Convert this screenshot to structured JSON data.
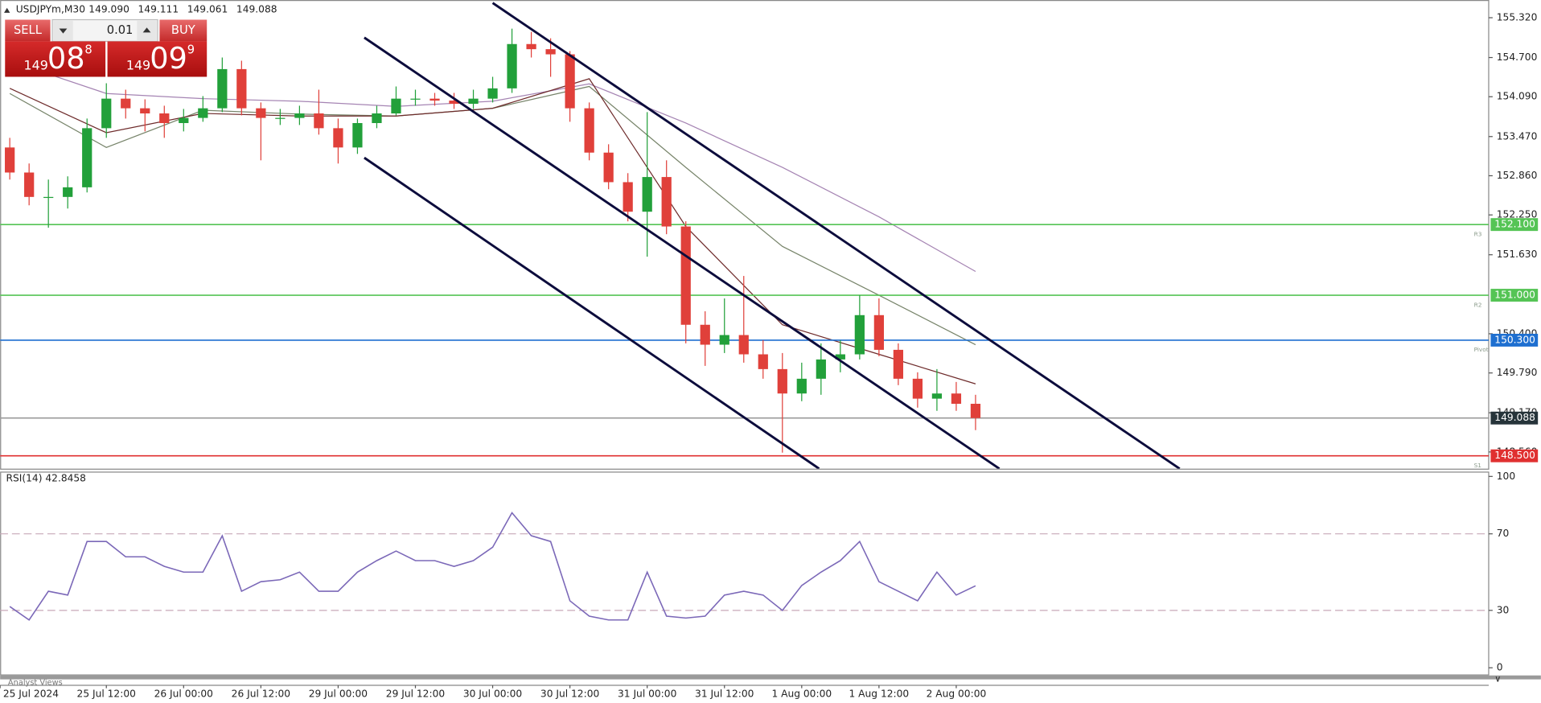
{
  "header": {
    "symbol": "USDJPYm,M30",
    "ohlc": [
      "149.090",
      "149.111",
      "149.061",
      "149.088"
    ]
  },
  "trade_panel": {
    "sell": "SELL",
    "buy": "BUY",
    "volume": "0.01",
    "sell_price": {
      "big": "149",
      "main": "08",
      "sup": "8"
    },
    "buy_price": {
      "big": "149",
      "main": "09",
      "sup": "9"
    }
  },
  "footer": "Analyst Views",
  "chart_data": [
    {
      "type": "candlestick",
      "up_color": "#22a03a",
      "down_color": "#e0403a",
      "x": [
        -3,
        0,
        3,
        6,
        9,
        12,
        15,
        18,
        21,
        24,
        27,
        30,
        33,
        36,
        39,
        42,
        45,
        48,
        51,
        54,
        57,
        60,
        63,
        66,
        69,
        72,
        75,
        78,
        81,
        84,
        87,
        90,
        93,
        96,
        99,
        102,
        105,
        108,
        111,
        114,
        117,
        120,
        123,
        126,
        129,
        132,
        135,
        138,
        141,
        144,
        147
      ],
      "candles": [
        [
          153.3,
          153.45,
          152.8,
          152.91
        ],
        [
          152.91,
          153.05,
          152.4,
          152.53
        ],
        [
          152.53,
          152.8,
          152.05,
          152.53
        ],
        [
          152.53,
          152.85,
          152.35,
          152.68
        ],
        [
          152.68,
          153.75,
          152.6,
          153.6
        ],
        [
          153.6,
          154.3,
          153.45,
          154.06
        ],
        [
          154.06,
          154.2,
          153.75,
          153.91
        ],
        [
          153.91,
          154.05,
          153.55,
          153.83
        ],
        [
          153.83,
          153.95,
          153.45,
          153.68
        ],
        [
          153.68,
          153.9,
          153.55,
          153.76
        ],
        [
          153.76,
          154.1,
          153.7,
          153.91
        ],
        [
          153.91,
          154.7,
          153.85,
          154.52
        ],
        [
          154.52,
          154.65,
          153.8,
          153.91
        ],
        [
          153.91,
          154.0,
          153.1,
          153.76
        ],
        [
          153.76,
          153.9,
          153.65,
          153.76
        ],
        [
          153.76,
          153.95,
          153.65,
          153.83
        ],
        [
          153.83,
          154.2,
          153.5,
          153.6
        ],
        [
          153.6,
          153.75,
          153.05,
          153.3
        ],
        [
          153.3,
          153.75,
          153.2,
          153.68
        ],
        [
          153.68,
          153.95,
          153.6,
          153.83
        ],
        [
          153.83,
          154.25,
          153.8,
          154.06
        ],
        [
          154.06,
          154.2,
          153.95,
          154.06
        ],
        [
          154.06,
          154.15,
          153.95,
          154.03
        ],
        [
          154.03,
          154.15,
          153.9,
          153.98
        ],
        [
          153.98,
          154.2,
          153.9,
          154.06
        ],
        [
          154.06,
          154.4,
          154.0,
          154.22
        ],
        [
          154.22,
          155.15,
          154.15,
          154.91
        ],
        [
          154.91,
          155.1,
          154.7,
          154.83
        ],
        [
          154.83,
          155.0,
          154.4,
          154.75
        ],
        [
          154.75,
          154.8,
          153.7,
          153.91
        ],
        [
          153.91,
          154.0,
          153.1,
          153.22
        ],
        [
          153.22,
          153.35,
          152.65,
          152.76
        ],
        [
          152.76,
          152.9,
          152.15,
          152.3
        ],
        [
          152.3,
          153.85,
          151.6,
          152.84
        ],
        [
          152.84,
          153.1,
          151.95,
          152.07
        ],
        [
          152.07,
          152.15,
          150.25,
          150.54
        ],
        [
          150.54,
          150.75,
          149.9,
          150.23
        ],
        [
          150.23,
          150.95,
          150.1,
          150.38
        ],
        [
          150.38,
          151.3,
          149.95,
          150.08
        ],
        [
          150.08,
          150.3,
          149.7,
          149.85
        ],
        [
          149.85,
          150.1,
          148.55,
          149.47
        ],
        [
          149.47,
          149.95,
          149.35,
          149.7
        ],
        [
          149.7,
          150.25,
          149.45,
          150.0
        ],
        [
          150.0,
          150.3,
          149.8,
          150.08
        ],
        [
          150.08,
          151.0,
          150.0,
          150.69
        ],
        [
          150.69,
          150.95,
          150.05,
          150.15
        ],
        [
          150.15,
          150.25,
          149.6,
          149.7
        ],
        [
          149.7,
          149.8,
          149.25,
          149.39
        ],
        [
          149.39,
          149.85,
          149.2,
          149.47
        ],
        [
          149.47,
          149.65,
          149.2,
          149.31
        ],
        [
          149.31,
          149.45,
          148.9,
          149.088
        ]
      ],
      "ma_x": [
        -3,
        12,
        27,
        42,
        57,
        72,
        87,
        102,
        117,
        132,
        147
      ],
      "ma": [
        {
          "color": "#a584b3",
          "values": [
            154.645,
            154.14,
            154.06,
            154.02,
            153.94,
            154.02,
            154.29,
            153.68,
            152.99,
            152.22,
            151.37
          ]
        },
        {
          "color": "#77846a",
          "values": [
            154.14,
            153.3,
            153.88,
            153.82,
            153.79,
            153.91,
            154.25,
            152.99,
            151.76,
            151.0,
            150.23
          ]
        },
        {
          "color": "#6e2b2b",
          "values": [
            154.22,
            153.53,
            153.83,
            153.79,
            153.79,
            153.91,
            154.37,
            152.07,
            150.54,
            150.08,
            149.62
          ]
        }
      ],
      "trendlines": [
        {
          "x": [
            72,
            178.7
          ],
          "y": [
            155.55,
            148.3
          ]
        },
        {
          "x": [
            52.06,
            150.7
          ],
          "y": [
            155.01,
            148.3
          ]
        },
        {
          "x": [
            52.06,
            122.7
          ],
          "y": [
            153.14,
            148.3
          ]
        }
      ],
      "trendline_color": "#0c0c3c",
      "levels": [
        {
          "value": 152.1,
          "label": "152.100",
          "name": "R3",
          "color": "#55c455"
        },
        {
          "value": 151.0,
          "label": "151.000",
          "name": "R2",
          "color": "#55c455"
        },
        {
          "value": 150.3,
          "label": "150.300",
          "name": "Pivot",
          "color": "#1e6fd0"
        },
        {
          "value": 149.088,
          "label": "149.088",
          "color": "#9a9a9a",
          "label_bg": "#26343a"
        },
        {
          "value": 148.5,
          "label": "148.500",
          "name": "S1",
          "color": "#e03030"
        }
      ],
      "xlim": [
        -4.5,
        226.7
      ],
      "xticks": [
        {
          "value": -4.5,
          "label": "25 Jul 2024"
        },
        {
          "value": 12,
          "label": "25 Jul 12:00"
        },
        {
          "value": 24,
          "label": "26 Jul 00:00"
        },
        {
          "value": 36,
          "label": "26 Jul 12:00"
        },
        {
          "value": 48,
          "label": "29 Jul 00:00"
        },
        {
          "value": 60,
          "label": "29 Jul 12:00"
        },
        {
          "value": 72,
          "label": "30 Jul 00:00"
        },
        {
          "value": 84,
          "label": "30 Jul 12:00"
        },
        {
          "value": 96,
          "label": "31 Jul 00:00"
        },
        {
          "value": 108,
          "label": "31 Jul 12:00"
        },
        {
          "value": 120,
          "label": "1 Aug 00:00"
        },
        {
          "value": 132,
          "label": "1 Aug 12:00"
        },
        {
          "value": 144,
          "label": "2 Aug 00:00"
        }
      ],
      "ylim": [
        148.3,
        155.565
      ],
      "yticks": [
        {
          "value": 155.32,
          "label": "155.320"
        },
        {
          "value": 154.7,
          "label": "154.700"
        },
        {
          "value": 154.09,
          "label": "154.090"
        },
        {
          "value": 153.47,
          "label": "153.470"
        },
        {
          "value": 152.86,
          "label": "152.860"
        },
        {
          "value": 152.25,
          "label": "152.250"
        },
        {
          "value": 151.63,
          "label": "151.630"
        },
        {
          "value": 150.4,
          "label": "150.400"
        },
        {
          "value": 149.79,
          "label": "149.790"
        },
        {
          "value": 149.17,
          "label": "149.170"
        },
        {
          "value": 148.56,
          "label": "148.560"
        }
      ]
    },
    {
      "type": "line",
      "title": "RSI(14) 42.8458",
      "color": "#7b68b8",
      "x": [
        -3,
        0,
        3,
        6,
        9,
        12,
        15,
        18,
        21,
        24,
        27,
        30,
        33,
        36,
        39,
        42,
        45,
        48,
        51,
        54,
        57,
        60,
        63,
        66,
        69,
        72,
        75,
        78,
        81,
        84,
        87,
        90,
        93,
        96,
        99,
        102,
        105,
        108,
        111,
        114,
        117,
        120,
        123,
        126,
        129,
        132,
        135,
        138,
        141,
        144,
        147
      ],
      "values": [
        32,
        25,
        40,
        38,
        66,
        66,
        58,
        58,
        53,
        50,
        50,
        69,
        40,
        45,
        46,
        50,
        40,
        40,
        50,
        56,
        61,
        56,
        56,
        53,
        56,
        63,
        81,
        69,
        66,
        35,
        27,
        25,
        25,
        50,
        27,
        26,
        27,
        38,
        40,
        38,
        30,
        43,
        50,
        56,
        66,
        45,
        40,
        35,
        50,
        38,
        42.8458
      ],
      "levels": [
        {
          "value": 70,
          "color": "#c8a8b8"
        },
        {
          "value": 30,
          "color": "#c8a8b8"
        }
      ],
      "xlim": [
        -4.5,
        226.7
      ],
      "ylim": [
        -4,
        102
      ],
      "yticks": [
        100,
        70,
        30,
        0
      ]
    }
  ]
}
